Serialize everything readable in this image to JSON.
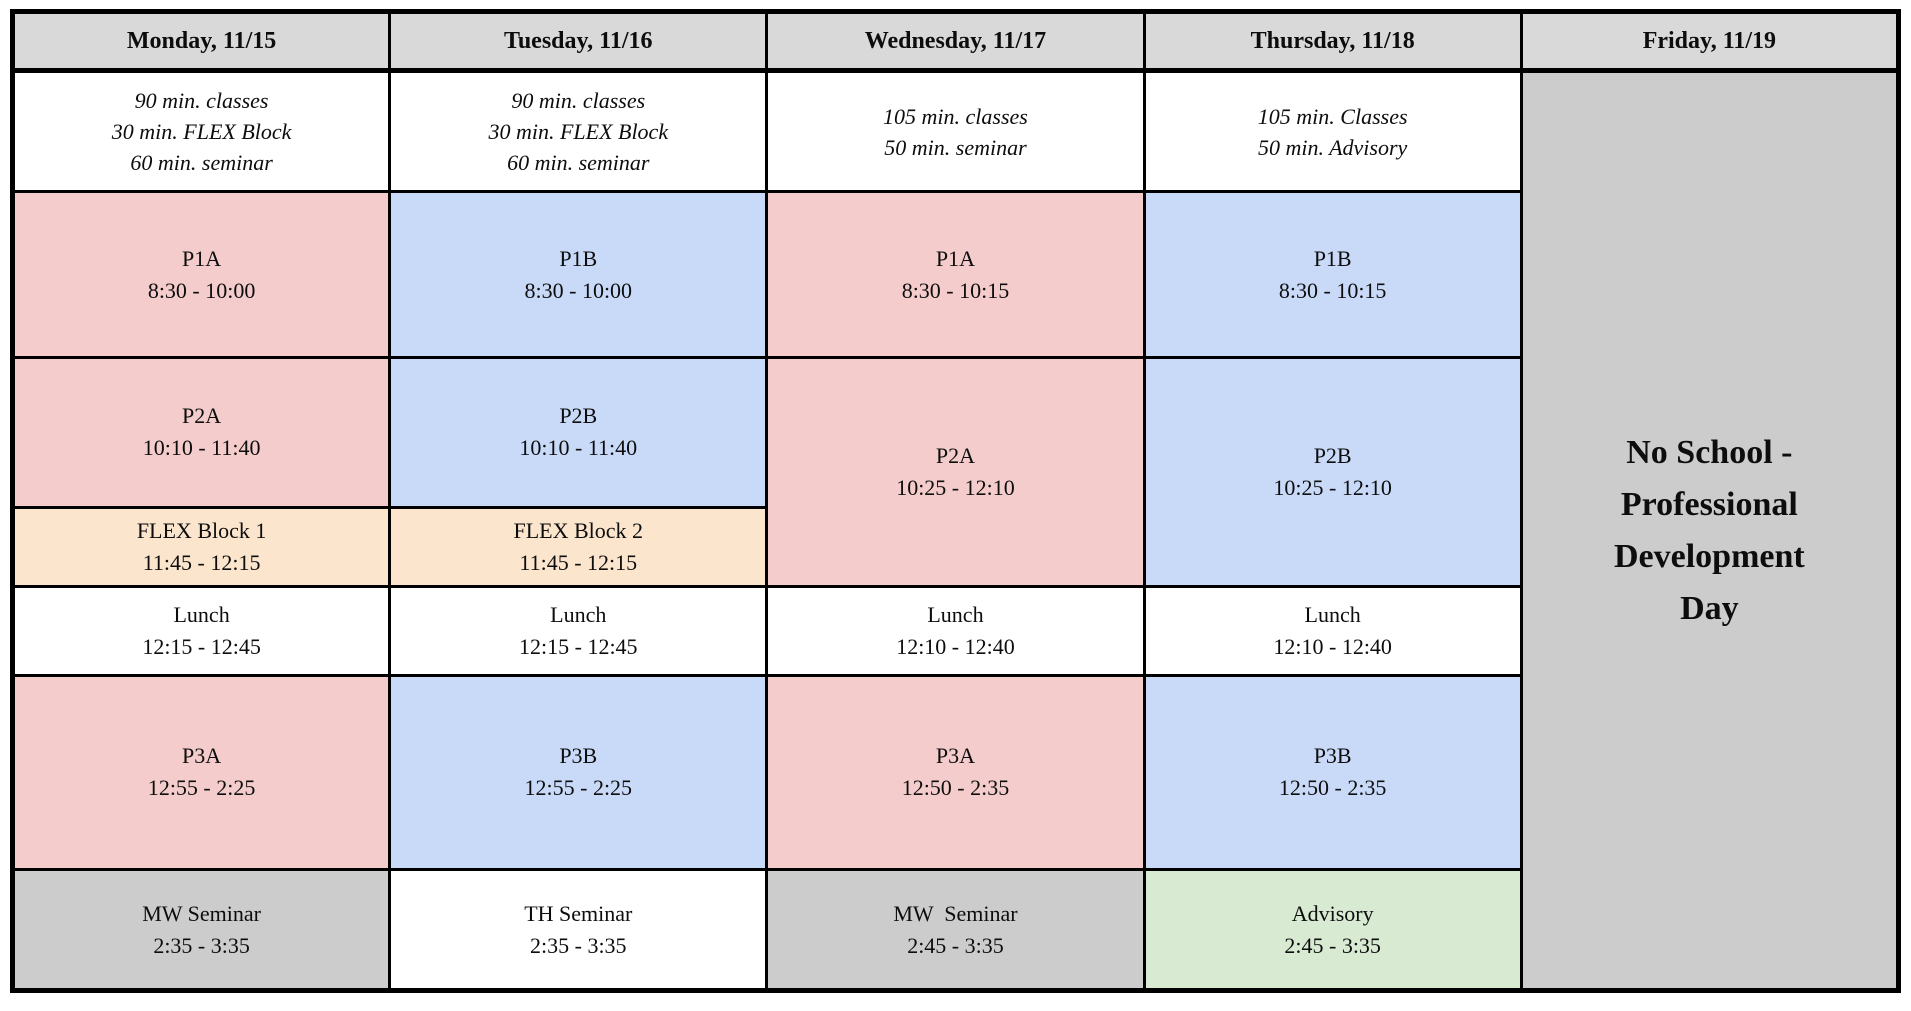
{
  "colors": {
    "header_bg": "#d9d9d9",
    "pink": "#f4cccc",
    "blue": "#c9daf8",
    "orange": "#fce5cd",
    "green": "#d9ead3",
    "gray": "#cccccc",
    "white": "#ffffff",
    "border": "#000000"
  },
  "days": [
    {
      "header": "Monday, 11/15",
      "desc": [
        "90 min. classes",
        "30 min. FLEX Block",
        "60 min. seminar"
      ],
      "p1": {
        "title": "P1A",
        "time": "8:30 - 10:00"
      },
      "p2": {
        "title": "P2A",
        "time": "10:10 - 11:40"
      },
      "flex": {
        "title": "FLEX Block 1",
        "time": "11:45 - 12:15"
      },
      "lunch": {
        "title": "Lunch",
        "time": "12:15 - 12:45"
      },
      "p3": {
        "title": "P3A",
        "time": "12:55 - 2:25"
      },
      "seminar": {
        "title": "MW Seminar",
        "time": "2:35 - 3:35"
      }
    },
    {
      "header": "Tuesday, 11/16",
      "desc": [
        "90 min. classes",
        "30 min. FLEX Block",
        "60 min. seminar"
      ],
      "p1": {
        "title": "P1B",
        "time": "8:30 - 10:00"
      },
      "p2": {
        "title": "P2B",
        "time": "10:10 - 11:40"
      },
      "flex": {
        "title": "FLEX Block 2",
        "time": "11:45 - 12:15"
      },
      "lunch": {
        "title": "Lunch",
        "time": "12:15 - 12:45"
      },
      "p3": {
        "title": "P3B",
        "time": "12:55 - 2:25"
      },
      "seminar": {
        "title": "TH Seminar",
        "time": "2:35 - 3:35"
      }
    },
    {
      "header": "Wednesday, 11/17",
      "desc": [
        "105 min. classes",
        "50 min. seminar"
      ],
      "p1": {
        "title": "P1A",
        "time": "8:30 - 10:15"
      },
      "p2": {
        "title": "P2A",
        "time": "10:25 - 12:10"
      },
      "lunch": {
        "title": "Lunch",
        "time": "12:10 - 12:40"
      },
      "p3": {
        "title": "P3A",
        "time": "12:50 - 2:35"
      },
      "seminar": {
        "title": "MW  Seminar",
        "time": "2:45 - 3:35"
      }
    },
    {
      "header": "Thursday, 11/18",
      "desc": [
        "105 min. Classes",
        "50 min. Advisory"
      ],
      "p1": {
        "title": "P1B",
        "time": "8:30 - 10:15"
      },
      "p2": {
        "title": "P2B",
        "time": "10:25 - 12:10"
      },
      "lunch": {
        "title": "Lunch",
        "time": "12:10 - 12:40"
      },
      "p3": {
        "title": "P3B",
        "time": "12:50 - 2:35"
      },
      "seminar": {
        "title": "Advisory",
        "time": "2:45 - 3:35"
      }
    },
    {
      "header": "Friday, 11/19",
      "notice": "No School - Professional Development Day"
    }
  ]
}
